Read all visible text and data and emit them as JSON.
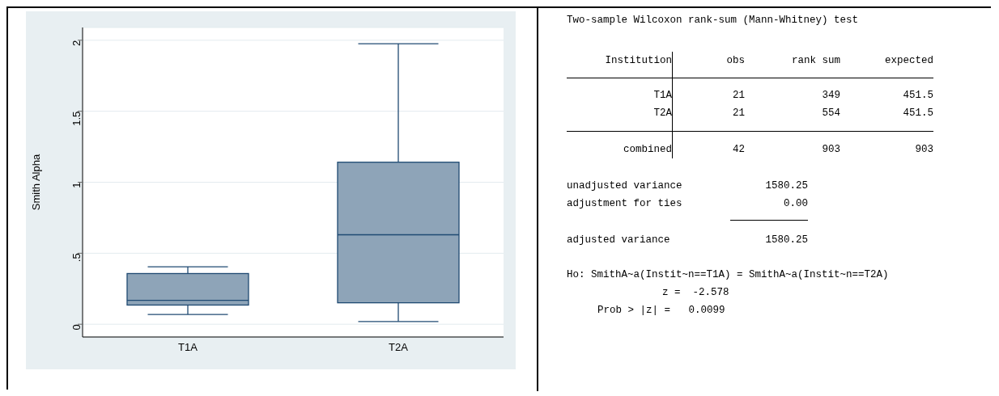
{
  "chart_data": [
    {
      "type": "box",
      "ylabel": "Smith Alpha",
      "categories": [
        "T1A",
        "T2A"
      ],
      "color": "#8ea4b8",
      "boxes": [
        {
          "low": 0.069,
          "q1": 0.135,
          "median": 0.168,
          "q3": 0.357,
          "high": 0.405
        },
        {
          "low": 0.019,
          "q1": 0.151,
          "median": 0.63,
          "q3": 1.141,
          "high": 1.976
        }
      ],
      "ylim": [
        -0.09,
        2.09
      ],
      "yticks": [
        0,
        {
          "value": 0.5,
          "label": ".5"
        },
        1,
        1.5,
        2
      ],
      "grid": "y"
    },
    {
      "type": "other",
      "title": "Two-sample Wilcoxon rank-sum (Mann-Whitney) test",
      "annotations": [
        "Institution",
        "obs",
        "rank sum",
        "expected",
        "T1A",
        "21",
        "349",
        "451.5",
        "T2A",
        "21",
        "554",
        "451.5",
        "combined",
        "42",
        "903",
        "903",
        "unadjusted variance",
        "1580.25",
        "adjustment for ties",
        "0.00",
        "adjusted variance",
        "1580.25",
        "Ho: SmithA~a(Instit~n==T1A) = SmithA~a(Instit~n==T2A)",
        "z =  -2.578",
        "Prob > |z| =   0.0099"
      ]
    }
  ]
}
